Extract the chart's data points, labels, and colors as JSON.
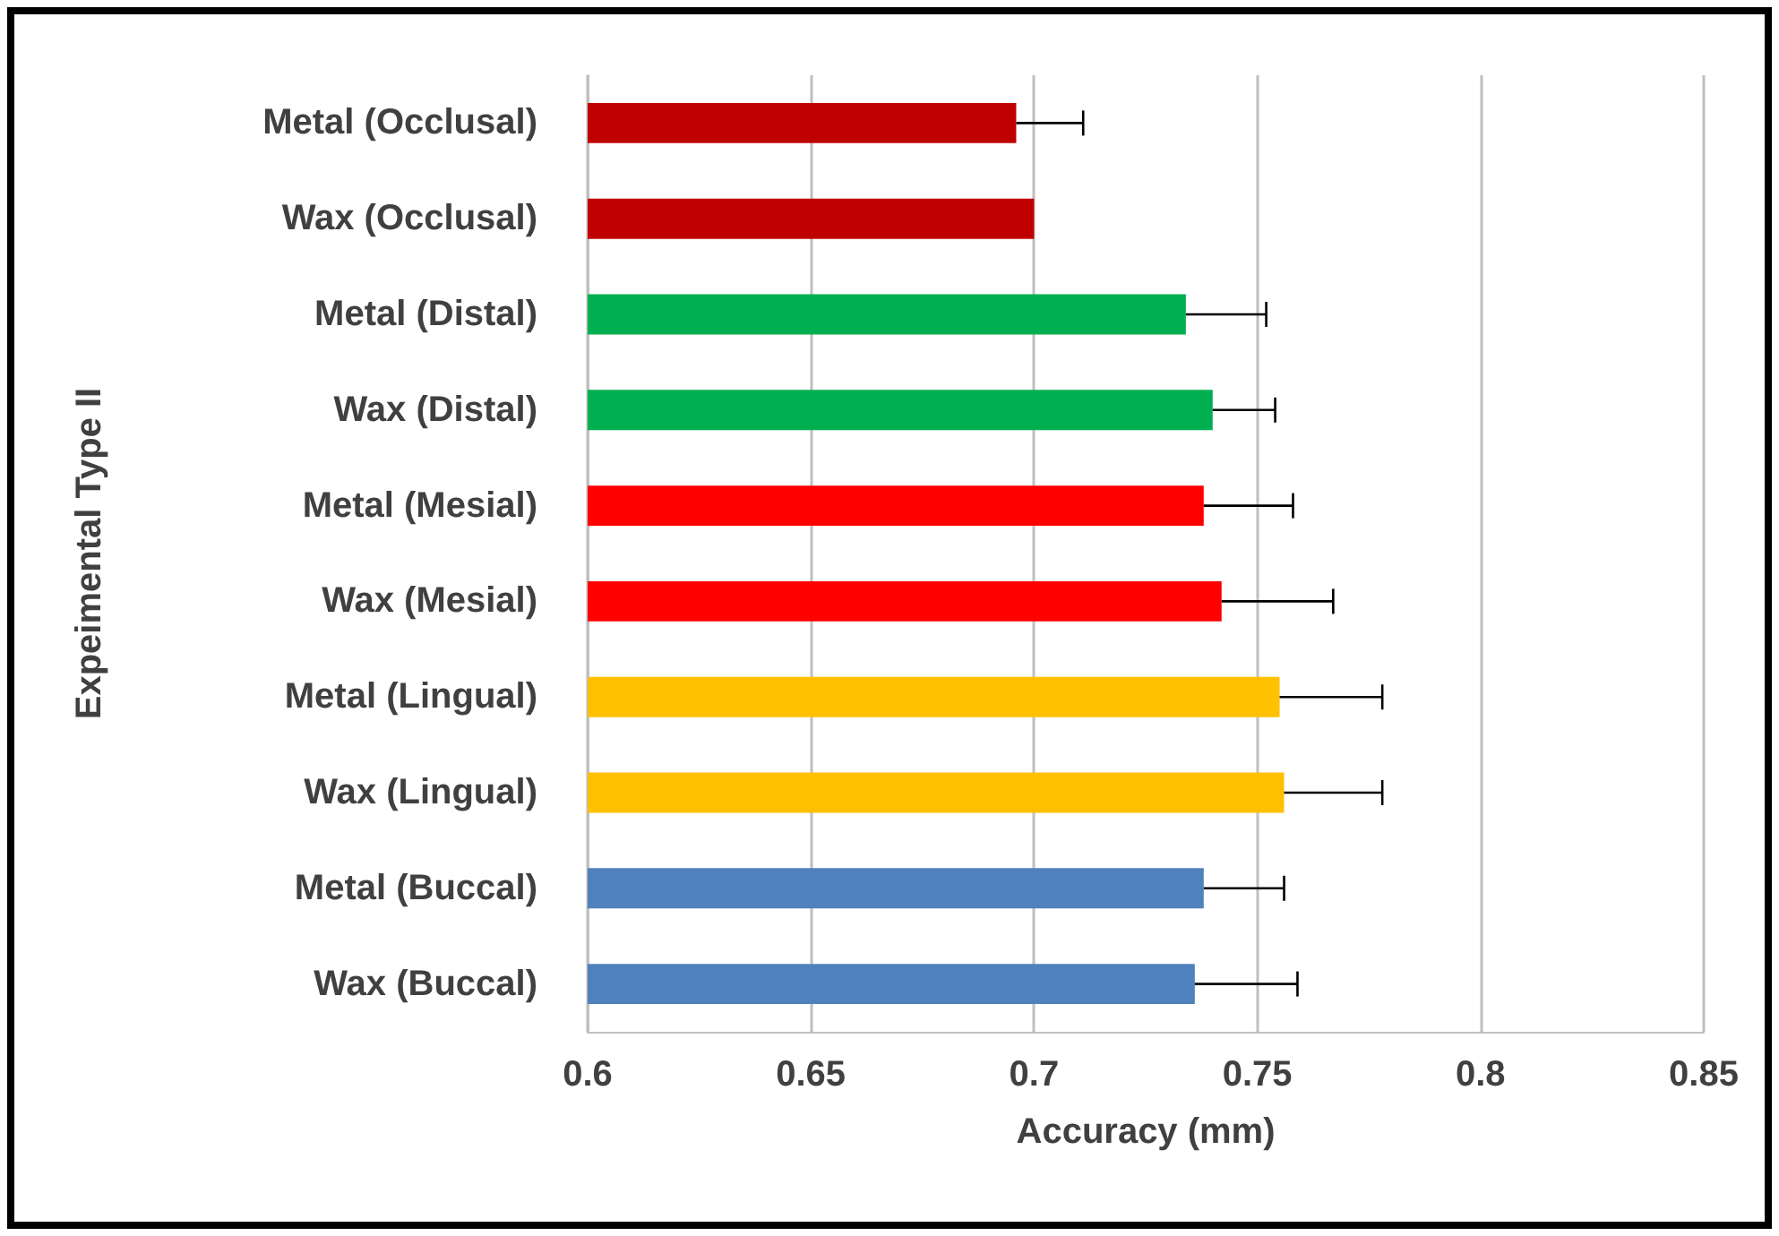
{
  "chart_data": {
    "type": "bar",
    "orientation": "horizontal",
    "xlabel": "Accuracy (mm)",
    "ylabel": "Expeimental Type II",
    "categories": [
      "Metal (Occlusal)",
      "Wax (Occlusal)",
      "Metal (Distal)",
      "Wax (Distal)",
      "Metal (Mesial)",
      "Wax (Mesial)",
      "Metal (Lingual)",
      "Wax (Lingual)",
      "Metal (Buccal)",
      "Wax (Buccal)"
    ],
    "values": [
      0.696,
      0.7,
      0.734,
      0.74,
      0.738,
      0.742,
      0.755,
      0.756,
      0.738,
      0.736
    ],
    "colors": [
      "#c00000",
      "#c00000",
      "#00b050",
      "#00b050",
      "#ff0000",
      "#ff0000",
      "#ffc000",
      "#ffc000",
      "#4f81bd",
      "#4f81bd"
    ],
    "errors": [
      [
        0.696,
        0.711
      ],
      null,
      [
        0.734,
        0.752
      ],
      [
        0.74,
        0.754
      ],
      [
        0.738,
        0.758
      ],
      [
        0.742,
        0.767
      ],
      [
        0.755,
        0.778
      ],
      [
        0.756,
        0.778
      ],
      [
        0.738,
        0.756
      ],
      [
        0.736,
        0.759
      ]
    ],
    "xlim": [
      0.6,
      0.85
    ],
    "xticks": [
      0.6,
      0.65,
      0.7,
      0.75,
      0.8,
      0.85
    ],
    "grid": "x",
    "legend": false
  }
}
